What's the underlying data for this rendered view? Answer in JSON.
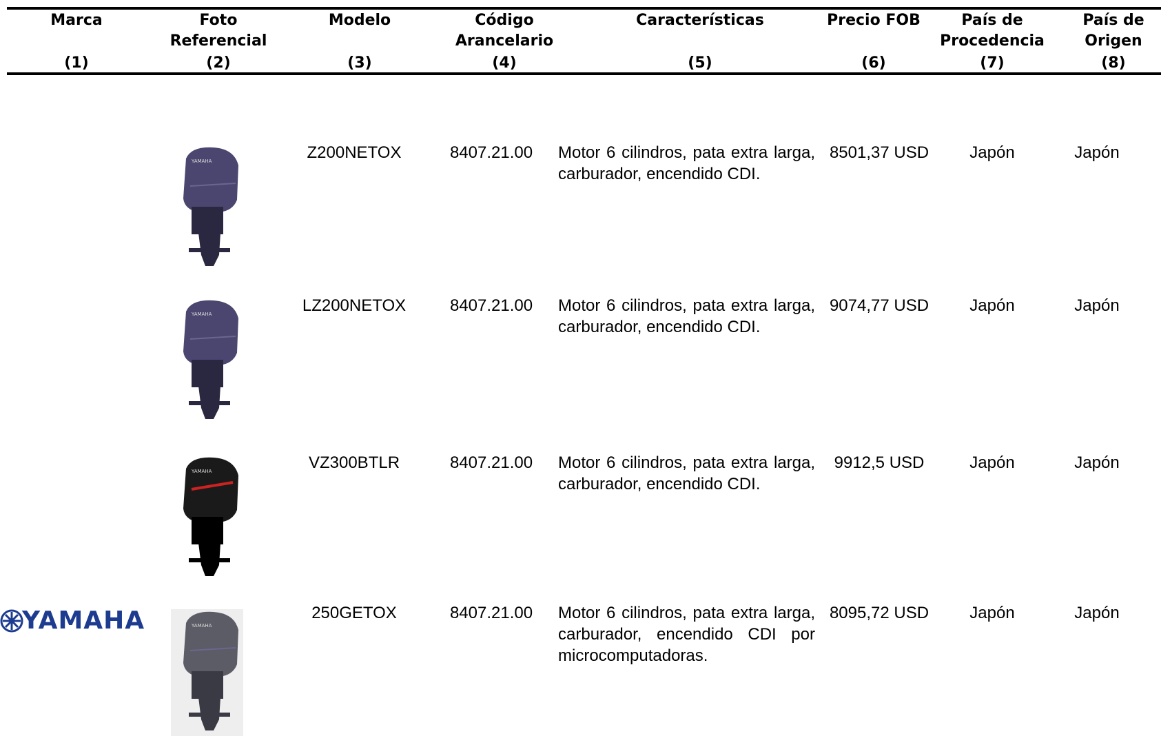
{
  "header": {
    "columns": [
      {
        "title_lines": [
          "Marca"
        ],
        "number": "(1)"
      },
      {
        "title_lines": [
          "Foto",
          "Referencial"
        ],
        "number": "(2)"
      },
      {
        "title_lines": [
          "Modelo"
        ],
        "number": "(3)"
      },
      {
        "title_lines": [
          "Código",
          "Arancelario"
        ],
        "number": "(4)"
      },
      {
        "title_lines": [
          "Características"
        ],
        "number": "(5)"
      },
      {
        "title_lines": [
          "Precio FOB"
        ],
        "number": "(6)"
      },
      {
        "title_lines": [
          "País de",
          "Procedencia"
        ],
        "number": "(7)"
      },
      {
        "title_lines": [
          "País de",
          "Origen"
        ],
        "number": "(8)"
      }
    ]
  },
  "brand": "YAMAHA",
  "rows": [
    {
      "model": "Z200NETOX",
      "code": "8407.21.00",
      "characteristics": "Motor 6 cilindros, pata extra larga, carburador, encendido CDI.",
      "price": "8501,37 USD",
      "provenance": "Japón",
      "origin": "Japón"
    },
    {
      "model": "LZ200NETOX",
      "code": "8407.21.00",
      "characteristics": "Motor 6 cilindros, pata extra larga, carburador, encendido CDI.",
      "price": "9074,77 USD",
      "provenance": "Japón",
      "origin": "Japón"
    },
    {
      "model": "VZ300BTLR",
      "code": "8407.21.00",
      "characteristics": "Motor 6 cilindros, pata extra larga, carburador, encendido CDI.",
      "price": "9912,5 USD",
      "provenance": "Japón",
      "origin": "Japón"
    },
    {
      "model": "250GETOX",
      "code": "8407.21.00",
      "characteristics": "Motor 6 cilindros, pata extra larga, carburador, encendido CDI por microcomputadoras.",
      "price": "8095,72 USD",
      "provenance": "Japón",
      "origin": "Japón"
    }
  ]
}
